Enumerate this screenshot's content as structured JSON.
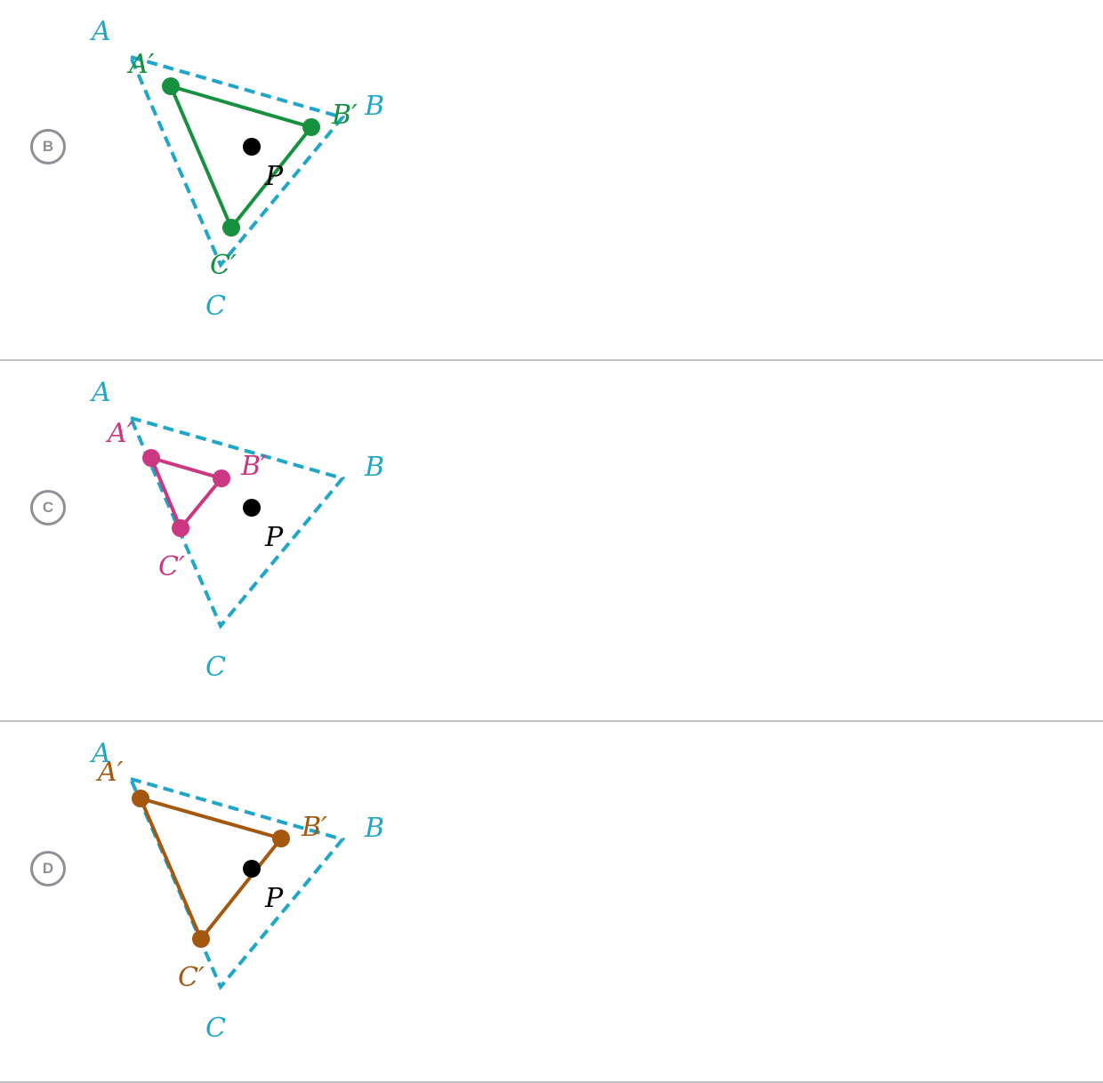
{
  "colors": {
    "original": "#1fa6c9",
    "P": "#000000",
    "B": "#17903f",
    "C": "#cc3781",
    "D": "#a4580f",
    "badge": "#8d9096"
  },
  "labels": {
    "A": "A",
    "B": "B",
    "C": "C",
    "A_prime": "A′",
    "B_prime": "B′",
    "C_prime": "C′",
    "P": "P"
  },
  "options": [
    {
      "letter": "B"
    },
    {
      "letter": "C"
    },
    {
      "letter": "D"
    }
  ]
}
